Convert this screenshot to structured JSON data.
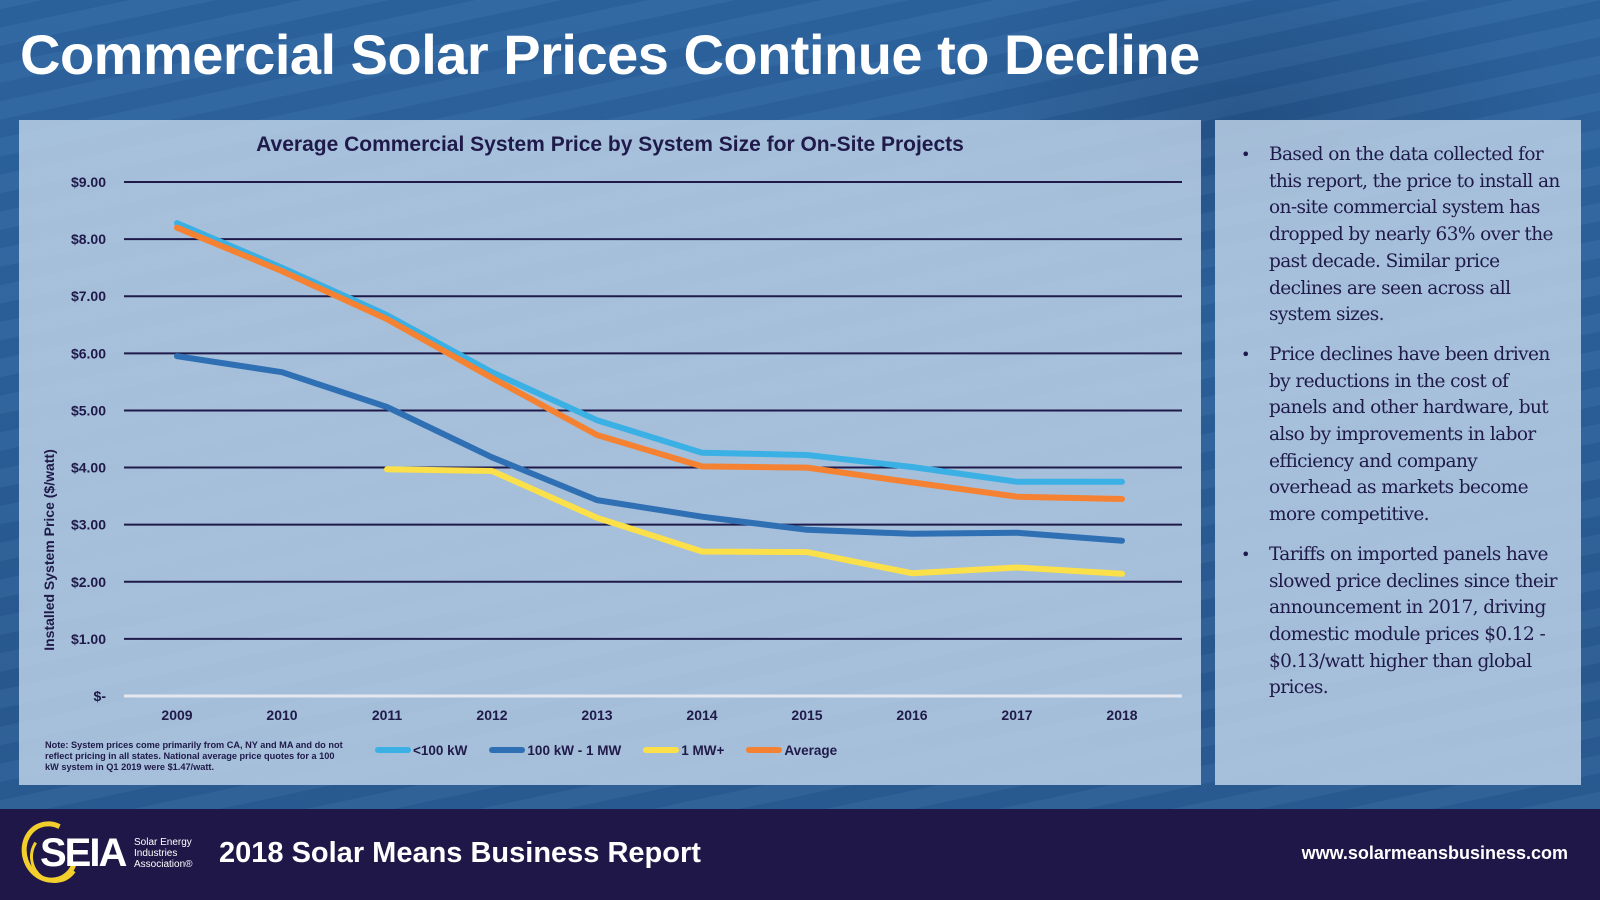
{
  "page": {
    "title": "Commercial Solar Prices Continue to Decline"
  },
  "chart_data": {
    "type": "line",
    "title": "Average Commercial System Price by System Size for On-Site Projects",
    "xlabel": "",
    "ylabel": "Installed System Price ($/watt)",
    "categories": [
      "2009",
      "2010",
      "2011",
      "2012",
      "2013",
      "2014",
      "2015",
      "2016",
      "2017",
      "2018"
    ],
    "ylim": [
      0,
      9
    ],
    "yticks": [
      {
        "value": 0,
        "label": "$-"
      },
      {
        "value": 1,
        "label": "$1.00"
      },
      {
        "value": 2,
        "label": "$2.00"
      },
      {
        "value": 3,
        "label": "$3.00"
      },
      {
        "value": 4,
        "label": "$4.00"
      },
      {
        "value": 5,
        "label": "$5.00"
      },
      {
        "value": 6,
        "label": "$6.00"
      },
      {
        "value": 7,
        "label": "$7.00"
      },
      {
        "value": 8,
        "label": "$8.00"
      },
      {
        "value": 9,
        "label": "$9.00"
      }
    ],
    "grid": true,
    "legend_position": "bottom",
    "series": [
      {
        "name": "<100 kW",
        "color": "#3bb0e4",
        "values": [
          8.28,
          7.5,
          6.67,
          5.67,
          4.83,
          4.26,
          4.22,
          4.01,
          3.75,
          3.75
        ]
      },
      {
        "name": "100 kW - 1 MW",
        "color": "#2f6fb3",
        "values": [
          5.95,
          5.67,
          5.06,
          4.18,
          3.43,
          3.14,
          2.91,
          2.84,
          2.86,
          2.72
        ]
      },
      {
        "name": "1 MW+",
        "color": "#fbe04a",
        "values": [
          null,
          null,
          3.97,
          3.94,
          3.12,
          2.53,
          2.52,
          2.15,
          2.25,
          2.14
        ]
      },
      {
        "name": "Average",
        "color": "#f58232",
        "values": [
          8.2,
          7.44,
          6.6,
          5.57,
          4.57,
          4.02,
          4.0,
          3.74,
          3.49,
          3.45
        ]
      }
    ],
    "note": "Note: System prices come primarily from CA, NY and MA and do not reflect pricing in all states. National average price quotes for a 100 kW system in Q1 2019 were $1.47/watt."
  },
  "side_panel": {
    "bullets": [
      "Based on the data collected for this report, the price to install an on-site commercial system has dropped by nearly 63% over the past decade. Similar price declines are seen across all system sizes.",
      "Price declines have been driven by reductions in the cost of panels and other hardware, but also by improvements in labor efficiency and company overhead as markets become more competitive.",
      "Tariffs on imported panels have slowed price declines since their announcement in 2017, driving domestic module prices $0.12 - $0.13/watt higher than global prices."
    ],
    "bullet_glyph": "•"
  },
  "footer": {
    "logo_text": "SEIA",
    "logo_subtitle_1": "Solar Energy",
    "logo_subtitle_2": "Industries",
    "logo_subtitle_3": "Association®",
    "report_title": "2018 Solar Means Business Report",
    "url": "www.solarmeansbusiness.com"
  }
}
